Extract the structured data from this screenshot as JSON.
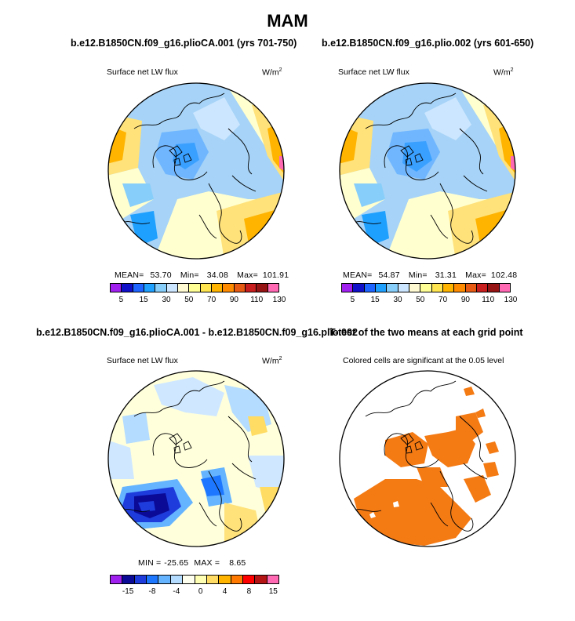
{
  "main_title": "MAM",
  "chart_data": [
    {
      "type": "heatmap",
      "panel": "top-left",
      "title": "b.e12.B1850CN.f09_g16.plioCA.001 (yrs 701-750)",
      "variable": "Surface net LW flux",
      "units": "W/m",
      "units_exp": "2",
      "stats": {
        "mean_label": "MEAN=",
        "mean": "53.70",
        "min_label": "Min=",
        "min": "34.08",
        "max_label": "Max=",
        "max": "101.91"
      },
      "colorbar": {
        "ticks": [
          "5",
          "15",
          "30",
          "50",
          "70",
          "90",
          "110",
          "130"
        ],
        "colors": [
          "#a020f0",
          "#1010c8",
          "#1e64ff",
          "#1ea0ff",
          "#87cefa",
          "#cce6ff",
          "#fffad2",
          "#ffff96",
          "#ffe650",
          "#ffb400",
          "#ff8c00",
          "#e65a14",
          "#c81e1e",
          "#961414",
          "#ff69b4"
        ]
      }
    },
    {
      "type": "heatmap",
      "panel": "top-right",
      "title": "b.e12.B1850CN.f09_g16.plio.002 (yrs 601-650)",
      "variable": "Surface net LW flux",
      "units": "W/m",
      "units_exp": "2",
      "stats": {
        "mean_label": "MEAN=",
        "mean": "54.87",
        "min_label": "Min=",
        "min": "31.31",
        "max_label": "Max=",
        "max": "102.48"
      },
      "colorbar": {
        "ticks": [
          "5",
          "15",
          "30",
          "50",
          "70",
          "90",
          "110",
          "130"
        ],
        "colors": [
          "#a020f0",
          "#1010c8",
          "#1e64ff",
          "#1ea0ff",
          "#87cefa",
          "#cce6ff",
          "#fffad2",
          "#ffff96",
          "#ffe650",
          "#ffb400",
          "#ff8c00",
          "#e65a14",
          "#c81e1e",
          "#961414",
          "#ff69b4"
        ]
      }
    },
    {
      "type": "heatmap",
      "panel": "bottom-left",
      "title": "b.e12.B1850CN.f09_g16.plioCA.001 - b.e12.B1850CN.f09_g16.plio.002",
      "variable": "Surface net LW flux",
      "units": "W/m",
      "units_exp": "2",
      "stats": {
        "min_label": "MIN =",
        "min": "-25.65",
        "max_label": "MAX =",
        "max": "8.65"
      },
      "colorbar": {
        "ticks": [
          "-15",
          "-8",
          "-4",
          "0",
          "4",
          "8",
          "15"
        ],
        "colors": [
          "#a020f0",
          "#0a0a96",
          "#1e3cdc",
          "#1e78ff",
          "#64b4ff",
          "#b4dcff",
          "#fffff0",
          "#ffffb4",
          "#ffdc64",
          "#ffb400",
          "#ff7800",
          "#ff0000",
          "#b41414",
          "#ff69b4"
        ]
      }
    },
    {
      "type": "heatmap",
      "panel": "bottom-right",
      "title": "T-test of the two means at each grid point",
      "subtitle": "Colored cells are significant at the 0.05 level",
      "significance_color": "#f47a14"
    }
  ]
}
